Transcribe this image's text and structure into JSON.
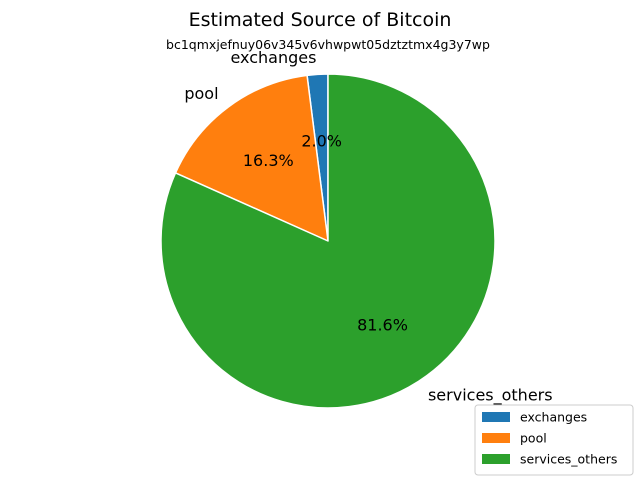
{
  "chart_data": {
    "type": "pie",
    "title": "Estimated Source of Bitcoin",
    "subtitle": "bc1qmxjefnuy06v345v6vhwpwt05dztztmx4g3y7wp",
    "slices": [
      {
        "label": "exchanges",
        "value": 2.0,
        "pct_label": "2.0%",
        "color": "#1f77b4"
      },
      {
        "label": "pool",
        "value": 16.3,
        "pct_label": "16.3%",
        "color": "#ff7f0e"
      },
      {
        "label": "services_others",
        "value": 81.6,
        "pct_label": "81.6%",
        "color": "#2ca02c"
      }
    ],
    "start_angle_deg": 90,
    "direction": "counterclockwise",
    "legend": {
      "placement": "lower-right",
      "entries": [
        "exchanges",
        "pool",
        "services_others"
      ]
    }
  }
}
